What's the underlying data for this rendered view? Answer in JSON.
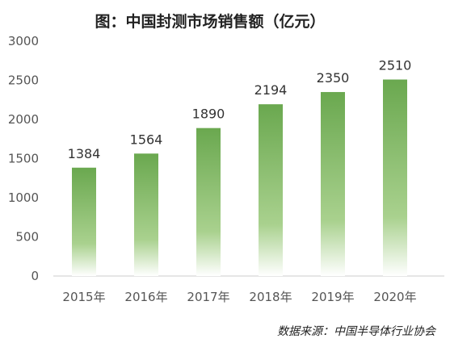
{
  "chart_data": {
    "type": "bar",
    "title": "图：中国封测市场销售额（亿元）",
    "source": "数据来源：中国半导体行业协会",
    "categories": [
      "2015年",
      "2016年",
      "2017年",
      "2018年",
      "2019年",
      "2020年"
    ],
    "values": [
      1384,
      1564,
      1890,
      2194,
      2350,
      2510
    ],
    "ylim": [
      0,
      3000
    ],
    "yticks": [
      0,
      500,
      1000,
      1500,
      2000,
      2500,
      3000
    ],
    "grid": false,
    "legend": "none",
    "bar_color_top": "#6aa84f",
    "bar_color_bottom": "#ffffff"
  }
}
